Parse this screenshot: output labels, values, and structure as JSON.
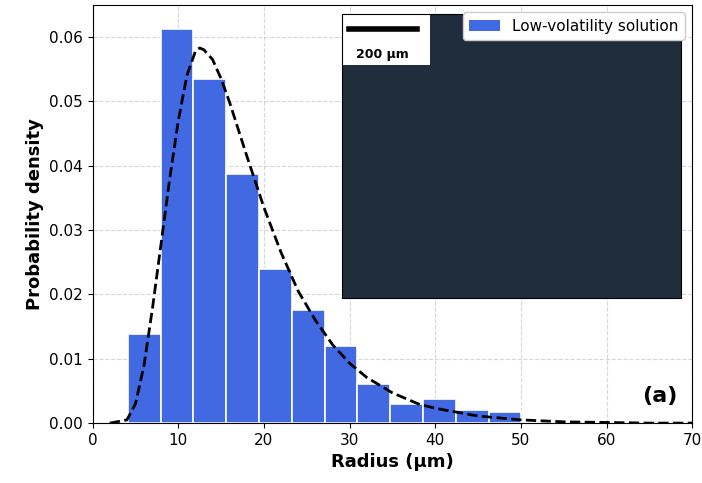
{
  "chart_data": {
    "type": "histogram",
    "x_label": "Radius (µm)",
    "y_label": "Probability density",
    "annotations": [
      "(a)",
      "200 µm"
    ],
    "bins": [
      4.1,
      7.93,
      11.76,
      15.59,
      19.42,
      23.25,
      27.08,
      30.91,
      34.74,
      38.57,
      42.4,
      46.23,
      50.06
    ],
    "series": [
      {
        "name": "Low-volatility solution",
        "type": "histogram",
        "color": "#4169e1",
        "values": [
          0.0138,
          0.0612,
          0.0534,
          0.0387,
          0.024,
          0.0175,
          0.012,
          0.006,
          0.003,
          0.0037,
          0.002,
          0.0017
        ]
      },
      {
        "type": "line",
        "color": "#000000",
        "line_style": "dashed",
        "x": [
          2,
          4,
          5,
          6,
          7,
          8,
          9,
          10,
          11,
          12,
          12.5,
          13,
          14,
          15,
          16,
          18,
          20,
          22,
          24,
          26,
          28,
          30,
          32,
          35,
          38,
          40,
          45,
          50,
          55,
          60,
          65,
          70
        ],
        "values": [
          0,
          0.0005,
          0.003,
          0.009,
          0.018,
          0.028,
          0.038,
          0.047,
          0.054,
          0.0578,
          0.0583,
          0.058,
          0.0565,
          0.0535,
          0.0498,
          0.0415,
          0.0335,
          0.0265,
          0.0205,
          0.016,
          0.0122,
          0.0093,
          0.0071,
          0.0047,
          0.003,
          0.0023,
          0.0011,
          0.0005,
          0.0002,
          0.0001,
          0,
          0
        ]
      }
    ],
    "xlim": [
      0,
      70
    ],
    "xticks": [
      0,
      10,
      20,
      30,
      40,
      50,
      60,
      70
    ],
    "ylim": [
      0,
      0.065
    ],
    "yticks": [
      {
        "value": 0,
        "label": "0.00"
      },
      {
        "value": 0.01,
        "label": "0.01"
      },
      {
        "value": 0.02,
        "label": "0.02"
      },
      {
        "value": 0.03,
        "label": "0.03"
      },
      {
        "value": 0.04,
        "label": "0.04"
      },
      {
        "value": 0.05,
        "label": "0.05"
      },
      {
        "value": 0.06,
        "label": "0.06"
      }
    ],
    "grid": true,
    "legend": "upper right"
  }
}
